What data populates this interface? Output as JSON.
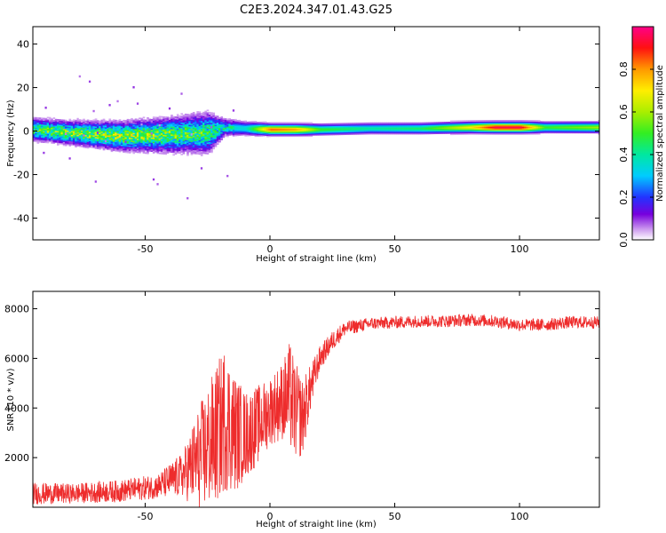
{
  "title": "C2E3.2024.347.01.43.G25",
  "chart_data": [
    {
      "type": "heatmap",
      "xlabel": "Height of straight line (km)",
      "ylabel": "Frequency (Hz)",
      "xlim": [
        -95,
        132
      ],
      "ylim": [
        -50,
        48
      ],
      "xticks": [
        -50,
        0,
        50,
        100
      ],
      "yticks": [
        -40,
        -20,
        0,
        20,
        40
      ],
      "xticklabels": [
        "-50",
        "0",
        "50",
        "100"
      ],
      "yticklabels": [
        "-40",
        "-20",
        "0",
        "20",
        "40"
      ],
      "colorbar": {
        "label": "Normalized spectral amplitude",
        "range": [
          0,
          1
        ],
        "ticks": [
          0.0,
          0.2,
          0.4,
          0.6,
          0.8
        ],
        "ticklabels": [
          "0.0",
          "0.2",
          "0.4",
          "0.6",
          "0.8"
        ]
      },
      "band_profile": {
        "x": [
          -95,
          -80,
          -60,
          -40,
          -25,
          -18,
          -10,
          0,
          10,
          20,
          40,
          60,
          80,
          90,
          100,
          110,
          132
        ],
        "center_hz": [
          0.5,
          -1,
          -2.5,
          -2,
          -1,
          1.5,
          1,
          0.5,
          0.5,
          0.5,
          1,
          1,
          1.5,
          1.5,
          1.5,
          1.5,
          1.5
        ],
        "width_hz": [
          4,
          4,
          5,
          6,
          7,
          3,
          2.5,
          2,
          2,
          2,
          2,
          2,
          2,
          2,
          2,
          2,
          2
        ],
        "peak_amplitude": [
          0.45,
          0.55,
          0.55,
          0.5,
          0.45,
          0.35,
          0.35,
          0.85,
          0.8,
          0.5,
          0.4,
          0.45,
          0.7,
          0.95,
          0.95,
          0.5,
          0.6
        ]
      }
    },
    {
      "type": "line",
      "xlabel": "Height of straight line (km)",
      "ylabel": "SNR (10 * v/v)",
      "xlim": [
        -95,
        132
      ],
      "ylim": [
        0,
        8700
      ],
      "xticks": [
        -50,
        0,
        50,
        100
      ],
      "yticks": [
        2000,
        4000,
        6000,
        8000
      ],
      "xticklabels": [
        "-50",
        "0",
        "50",
        "100"
      ],
      "yticklabels": [
        "2000",
        "4000",
        "6000",
        "8000"
      ],
      "series": [
        {
          "color": "#ee2c2c",
          "envelope": {
            "x": [
              -95,
              -80,
              -60,
              -45,
              -35,
              -28,
              -22,
              -18,
              -14,
              -10,
              -5,
              0,
              5,
              8,
              10,
              13,
              16,
              20,
              25,
              30,
              40,
              50,
              60,
              70,
              80,
              90,
              100,
              110,
              120,
              132
            ],
            "mean": [
              550,
              550,
              650,
              850,
              1300,
              2000,
              2800,
              3600,
              3000,
              2900,
              3300,
              3900,
              4300,
              4500,
              3900,
              3600,
              4700,
              6000,
              6700,
              7200,
              7400,
              7450,
              7500,
              7500,
              7550,
              7500,
              7350,
              7350,
              7450,
              7450
            ],
            "spread": [
              450,
              400,
              450,
              500,
              900,
              2200,
              2800,
              3000,
              2400,
              1800,
              1600,
              1400,
              1600,
              2200,
              2000,
              1600,
              1000,
              500,
              400,
              300,
              250,
              250,
              250,
              250,
              250,
              250,
              250,
              250,
              250,
              250
            ]
          }
        }
      ]
    }
  ]
}
